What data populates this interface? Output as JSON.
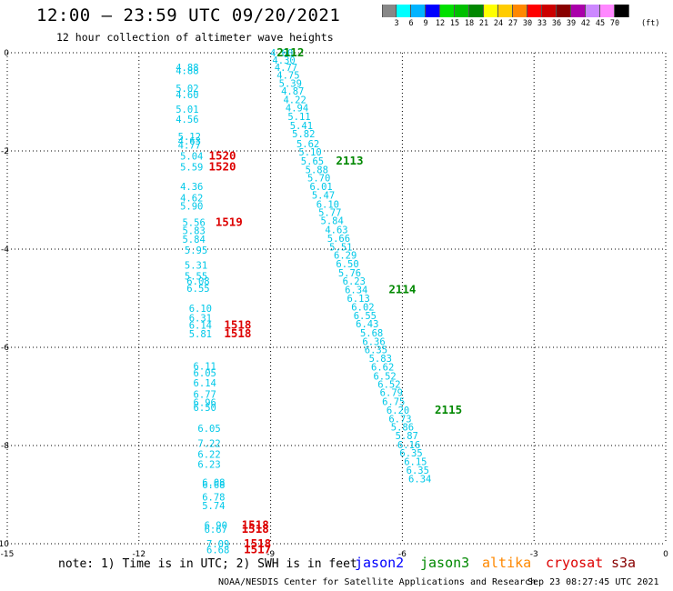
{
  "header": {
    "title": "12:00 – 23:59 UTC 09/20/2021",
    "subtitle": "12 hour collection of altimeter wave heights"
  },
  "legend": {
    "colors": [
      "#888888",
      "#00ffff",
      "#00b4ff",
      "#0000ff",
      "#00e000",
      "#00c000",
      "#008800",
      "#ffff00",
      "#ffcc00",
      "#ff8800",
      "#ff0000",
      "#cc0000",
      "#880000",
      "#aa00aa",
      "#cc88ff",
      "#ff88ff",
      "#000000"
    ],
    "labels": [
      "3",
      "6",
      "9",
      "12",
      "15",
      "18",
      "21",
      "24",
      "27",
      "30",
      "33",
      "36",
      "39",
      "42",
      "45",
      "70"
    ],
    "unit": "(ft)"
  },
  "chart_data": {
    "type": "scatter",
    "xlim": [
      -15,
      0
    ],
    "ylim": [
      -10,
      0
    ],
    "x_ticks": [
      "-15",
      "-12",
      "-9",
      "-6",
      "-3",
      "0"
    ],
    "y_ticks": [
      "0",
      "-2",
      "-4",
      "-6",
      "-8",
      "-10"
    ],
    "grid": true,
    "series": [
      {
        "name": "track-swh-west",
        "color": "#00c8e8",
        "points": [
          {
            "x": -10.9,
            "y": -0.3,
            "label": "4.88"
          },
          {
            "x": -10.9,
            "y": -0.36,
            "label": "4.88"
          },
          {
            "x": -10.9,
            "y": -0.72,
            "label": "5.02"
          },
          {
            "x": -10.9,
            "y": -0.85,
            "label": "4.60"
          },
          {
            "x": -10.9,
            "y": -1.15,
            "label": "5.01"
          },
          {
            "x": -10.9,
            "y": -1.35,
            "label": "4.56"
          },
          {
            "x": -10.85,
            "y": -1.7,
            "label": "5.12"
          },
          {
            "x": -10.85,
            "y": -1.8,
            "label": "4.63"
          },
          {
            "x": -10.85,
            "y": -1.88,
            "label": "4.77"
          },
          {
            "x": -10.8,
            "y": -2.1,
            "label": "5.04"
          },
          {
            "x": -10.8,
            "y": -2.32,
            "label": "5.59"
          },
          {
            "x": -10.8,
            "y": -2.72,
            "label": "4.36"
          },
          {
            "x": -10.8,
            "y": -2.95,
            "label": "4.62"
          },
          {
            "x": -10.8,
            "y": -3.12,
            "label": "5.90"
          },
          {
            "x": -10.75,
            "y": -3.45,
            "label": "5.56"
          },
          {
            "x": -10.75,
            "y": -3.62,
            "label": "5.83"
          },
          {
            "x": -10.75,
            "y": -3.8,
            "label": "5.84"
          },
          {
            "x": -10.7,
            "y": -4.02,
            "label": "5.95"
          },
          {
            "x": -10.7,
            "y": -4.32,
            "label": "5.31"
          },
          {
            "x": -10.7,
            "y": -4.55,
            "label": "5.55"
          },
          {
            "x": -10.65,
            "y": -4.65,
            "label": "6.08"
          },
          {
            "x": -10.65,
            "y": -4.8,
            "label": "6.55"
          },
          {
            "x": -10.6,
            "y": -5.2,
            "label": "6.10"
          },
          {
            "x": -10.6,
            "y": -5.4,
            "label": "6.31"
          },
          {
            "x": -10.6,
            "y": -5.55,
            "label": "6.14"
          },
          {
            "x": -10.6,
            "y": -5.72,
            "label": "5.81"
          },
          {
            "x": -10.5,
            "y": -6.38,
            "label": "6.11"
          },
          {
            "x": -10.5,
            "y": -6.52,
            "label": "6.05"
          },
          {
            "x": -10.5,
            "y": -6.72,
            "label": "6.14"
          },
          {
            "x": -10.5,
            "y": -6.95,
            "label": "6.77"
          },
          {
            "x": -10.5,
            "y": -7.12,
            "label": "6.96"
          },
          {
            "x": -10.5,
            "y": -7.22,
            "label": "6.50"
          },
          {
            "x": -10.4,
            "y": -7.65,
            "label": "6.05"
          },
          {
            "x": -10.4,
            "y": -7.95,
            "label": "7.22"
          },
          {
            "x": -10.4,
            "y": -8.18,
            "label": "6.22"
          },
          {
            "x": -10.4,
            "y": -8.38,
            "label": "6.23"
          },
          {
            "x": -10.3,
            "y": -8.75,
            "label": "6.08"
          },
          {
            "x": -10.3,
            "y": -8.8,
            "label": "6.68"
          },
          {
            "x": -10.3,
            "y": -9.05,
            "label": "6.78"
          },
          {
            "x": -10.3,
            "y": -9.22,
            "label": "5.74"
          },
          {
            "x": -10.25,
            "y": -9.62,
            "label": "6.90"
          },
          {
            "x": -10.25,
            "y": -9.7,
            "label": "6.67"
          },
          {
            "x": -10.2,
            "y": -10.0,
            "label": "7.09"
          },
          {
            "x": -10.2,
            "y": -10.12,
            "label": "6.68"
          }
        ]
      },
      {
        "name": "track-swh-east",
        "color": "#00c8e8",
        "points": [
          {
            "x": -8.75,
            "y": 0.0,
            "label": "4.60"
          },
          {
            "x": -8.7,
            "y": -0.15,
            "label": "4.30"
          },
          {
            "x": -8.65,
            "y": -0.3,
            "label": "4.77"
          },
          {
            "x": -8.6,
            "y": -0.45,
            "label": "4.75"
          },
          {
            "x": -8.55,
            "y": -0.62,
            "label": "5.39"
          },
          {
            "x": -8.5,
            "y": -0.78,
            "label": "4.87"
          },
          {
            "x": -8.45,
            "y": -0.95,
            "label": "4.22"
          },
          {
            "x": -8.4,
            "y": -1.12,
            "label": "4.94"
          },
          {
            "x": -8.35,
            "y": -1.3,
            "label": "5.11"
          },
          {
            "x": -8.3,
            "y": -1.48,
            "label": "5.41"
          },
          {
            "x": -8.25,
            "y": -1.65,
            "label": "5.82"
          },
          {
            "x": -8.15,
            "y": -1.85,
            "label": "5.62"
          },
          {
            "x": -8.1,
            "y": -2.02,
            "label": "5.10"
          },
          {
            "x": -8.05,
            "y": -2.2,
            "label": "5.65"
          },
          {
            "x": -7.95,
            "y": -2.38,
            "label": "5.88"
          },
          {
            "x": -7.9,
            "y": -2.55,
            "label": "5.70"
          },
          {
            "x": -7.85,
            "y": -2.72,
            "label": "6.01"
          },
          {
            "x": -7.8,
            "y": -2.9,
            "label": "5.47"
          },
          {
            "x": -7.7,
            "y": -3.08,
            "label": "6.10"
          },
          {
            "x": -7.65,
            "y": -3.25,
            "label": "5.77"
          },
          {
            "x": -7.6,
            "y": -3.42,
            "label": "5.84"
          },
          {
            "x": -7.5,
            "y": -3.6,
            "label": "4.63"
          },
          {
            "x": -7.45,
            "y": -3.78,
            "label": "5.66"
          },
          {
            "x": -7.4,
            "y": -3.95,
            "label": "5.51"
          },
          {
            "x": -7.3,
            "y": -4.12,
            "label": "6.29"
          },
          {
            "x": -7.25,
            "y": -4.3,
            "label": "6.50"
          },
          {
            "x": -7.2,
            "y": -4.48,
            "label": "5.76"
          },
          {
            "x": -7.1,
            "y": -4.65,
            "label": "6.23"
          },
          {
            "x": -7.05,
            "y": -4.82,
            "label": "6.34"
          },
          {
            "x": -7.0,
            "y": -5.0,
            "label": "6.13"
          },
          {
            "x": -6.9,
            "y": -5.18,
            "label": "6.02"
          },
          {
            "x": -6.85,
            "y": -5.35,
            "label": "6.55"
          },
          {
            "x": -6.8,
            "y": -5.52,
            "label": "6.43"
          },
          {
            "x": -6.7,
            "y": -5.7,
            "label": "5.68"
          },
          {
            "x": -6.65,
            "y": -5.88,
            "label": "6.36"
          },
          {
            "x": -6.6,
            "y": -6.05,
            "label": "6.35"
          },
          {
            "x": -6.5,
            "y": -6.22,
            "label": "5.83"
          },
          {
            "x": -6.45,
            "y": -6.4,
            "label": "6.62"
          },
          {
            "x": -6.4,
            "y": -6.58,
            "label": "6.52"
          },
          {
            "x": -6.3,
            "y": -6.75,
            "label": "6.52"
          },
          {
            "x": -6.25,
            "y": -6.92,
            "label": "6.79"
          },
          {
            "x": -6.2,
            "y": -7.1,
            "label": "6.75"
          },
          {
            "x": -6.1,
            "y": -7.28,
            "label": "6.20"
          },
          {
            "x": -6.05,
            "y": -7.45,
            "label": "6.73"
          },
          {
            "x": -6.0,
            "y": -7.62,
            "label": "5.86"
          },
          {
            "x": -5.9,
            "y": -7.8,
            "label": "5.87"
          },
          {
            "x": -5.85,
            "y": -7.98,
            "label": "6.16"
          },
          {
            "x": -5.8,
            "y": -8.15,
            "label": "6.35"
          },
          {
            "x": -5.7,
            "y": -8.32,
            "label": "6.15"
          },
          {
            "x": -5.65,
            "y": -8.5,
            "label": "6.35"
          },
          {
            "x": -5.6,
            "y": -8.68,
            "label": "6.34"
          }
        ]
      }
    ],
    "time_labels": [
      {
        "x": -8.55,
        "y": 0.0,
        "text": "2112",
        "color": "#008800"
      },
      {
        "x": -7.2,
        "y": -2.2,
        "text": "2113",
        "color": "#008800"
      },
      {
        "x": -6.0,
        "y": -4.82,
        "text": "2114",
        "color": "#008800"
      },
      {
        "x": -4.95,
        "y": -7.28,
        "text": "2115",
        "color": "#008800"
      },
      {
        "x": -10.1,
        "y": -2.1,
        "text": "1520",
        "color": "#dd0000"
      },
      {
        "x": -10.1,
        "y": -2.32,
        "text": "1520",
        "color": "#dd0000"
      },
      {
        "x": -9.95,
        "y": -3.45,
        "text": "1519",
        "color": "#dd0000"
      },
      {
        "x": -9.75,
        "y": -5.55,
        "text": "1518",
        "color": "#dd0000"
      },
      {
        "x": -9.75,
        "y": -5.72,
        "text": "1518",
        "color": "#dd0000"
      },
      {
        "x": -9.35,
        "y": -9.62,
        "text": "1518",
        "color": "#dd0000"
      },
      {
        "x": -9.35,
        "y": -9.7,
        "text": "1518",
        "color": "#dd0000"
      },
      {
        "x": -9.3,
        "y": -10.0,
        "text": "1518",
        "color": "#dd0000"
      },
      {
        "x": -9.3,
        "y": -10.12,
        "text": "1517",
        "color": "#dd0000"
      }
    ]
  },
  "footer": {
    "note": "note:  1) Time is in UTC;  2) SWH is in feet",
    "missions": [
      {
        "name": "jason2",
        "color": "#0000ff"
      },
      {
        "name": "jason3",
        "color": "#008800"
      },
      {
        "name": "altika",
        "color": "#ff8800"
      },
      {
        "name": "cryosat",
        "color": "#dd0000"
      },
      {
        "name": "s3a",
        "color": "#880000"
      }
    ],
    "credit": "NOAA/NESDIS Center for Satellite Applications and Research",
    "timestamp": "Sep 23 08:27:45 UTC 2021"
  }
}
